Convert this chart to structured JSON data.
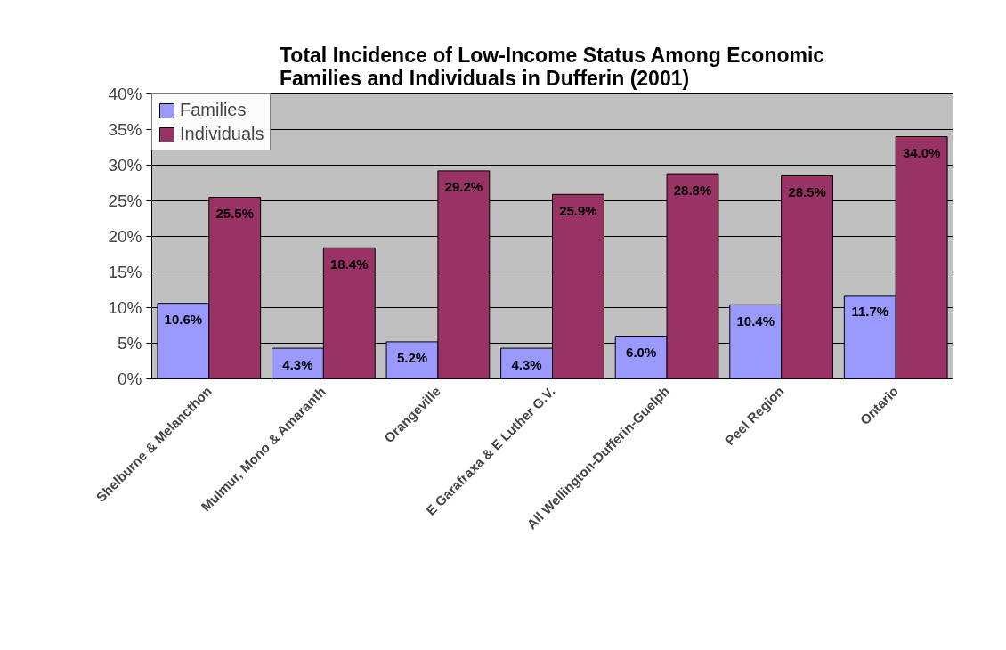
{
  "chart_data": {
    "type": "bar",
    "title": "Total Incidence of Low-Income Status Among Economic\nFamilies and Individuals in Dufferin (2001)",
    "categories": [
      "Shelburne & Melancthon",
      "Mulmur, Mono & Amaranth",
      "Orangeville",
      "E Garafraxa & E Luther G.V.",
      "All Wellington-Dufferin-Guelph",
      "Peel Region",
      "Ontario"
    ],
    "series": [
      {
        "name": "Families",
        "color": "#9999ff",
        "values": [
          10.6,
          4.3,
          5.2,
          4.3,
          6.0,
          10.4,
          11.7
        ],
        "value_labels": [
          "10.6%",
          "4.3%",
          "5.2%",
          "4.3%",
          "6.0%",
          "10.4%",
          "11.7%"
        ]
      },
      {
        "name": "Individuals",
        "color": "#993366",
        "values": [
          25.5,
          18.4,
          29.2,
          25.9,
          28.8,
          28.5,
          34.0
        ],
        "value_labels": [
          "25.5%",
          "18.4%",
          "29.2%",
          "25.9%",
          "28.8%",
          "28.5%",
          "34.0%"
        ]
      }
    ],
    "ylim": [
      0,
      40
    ],
    "yticks": [
      {
        "value": 0,
        "label": "0%"
      },
      {
        "value": 5,
        "label": "5%"
      },
      {
        "value": 10,
        "label": "10%"
      },
      {
        "value": 15,
        "label": "15%"
      },
      {
        "value": 20,
        "label": "20%"
      },
      {
        "value": 25,
        "label": "25%"
      },
      {
        "value": 30,
        "label": "30%"
      },
      {
        "value": 35,
        "label": "35%"
      },
      {
        "value": 40,
        "label": "40%"
      }
    ],
    "grid": "y",
    "legend": "top left"
  }
}
